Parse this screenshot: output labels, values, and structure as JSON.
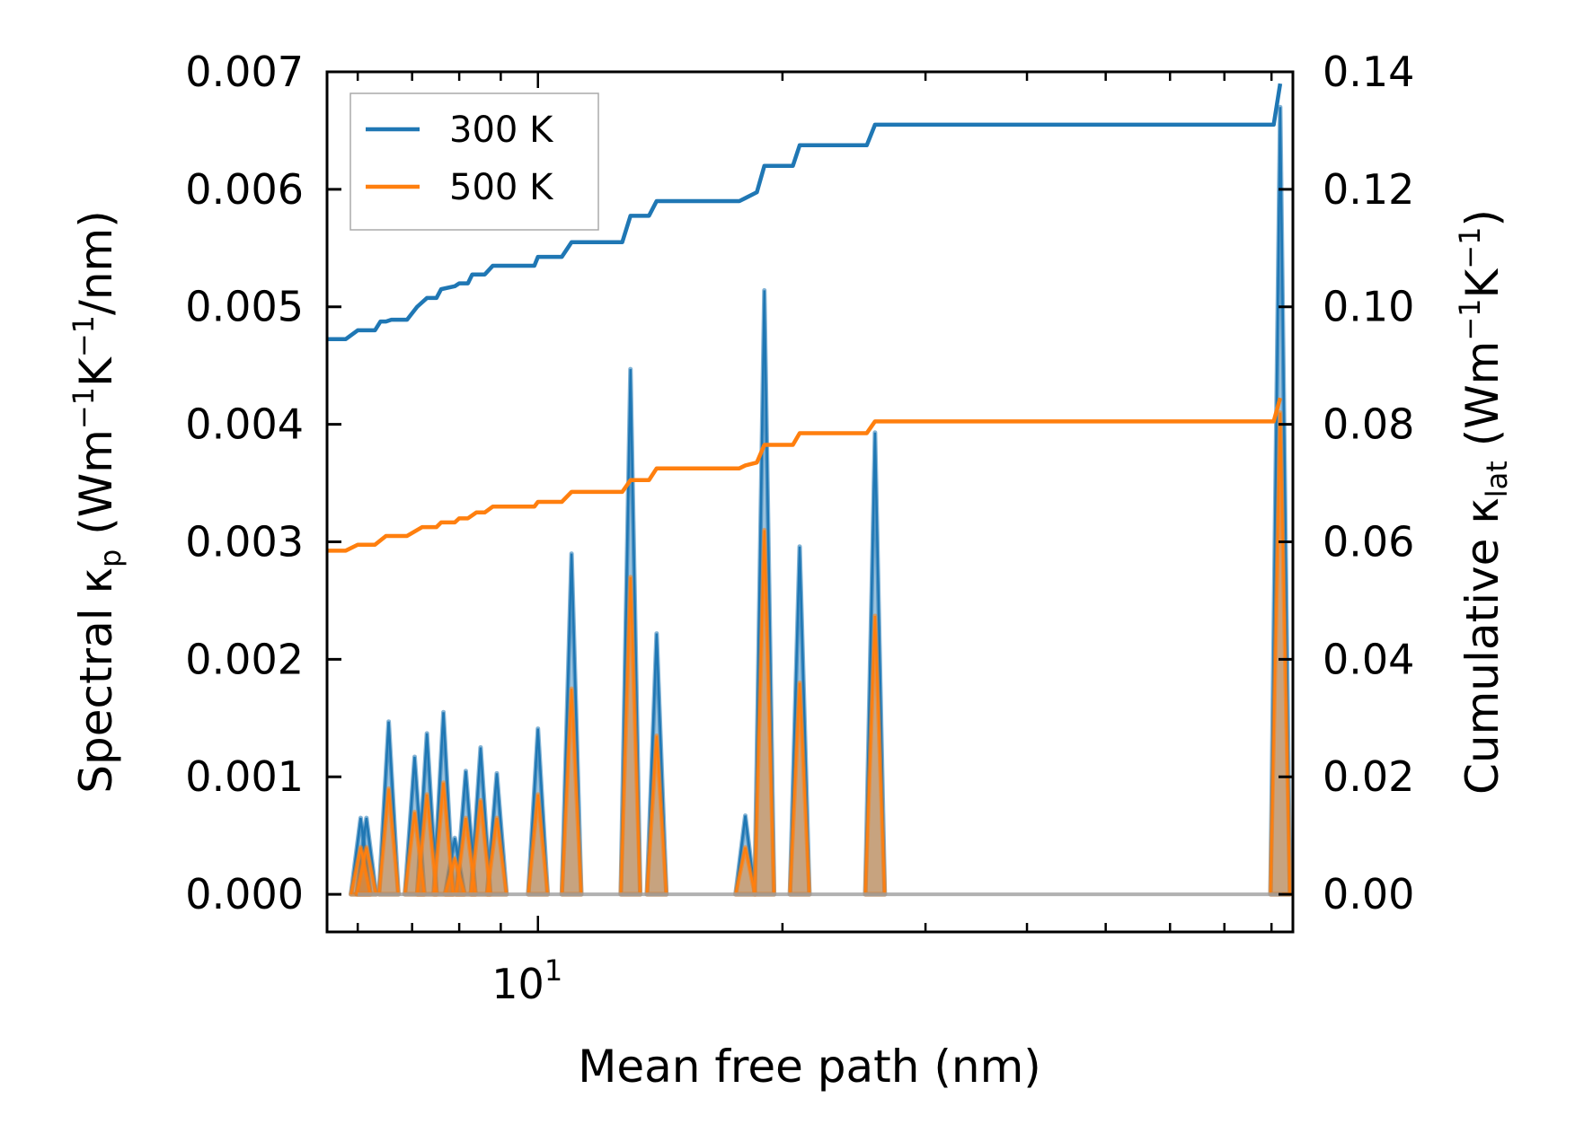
{
  "chart_data": {
    "type": "line",
    "xlabel": "Mean free path (nm)",
    "xscale": "log",
    "xlim": [
      5.5,
      85
    ],
    "x_tick_labels": [
      {
        "value": 10,
        "base": "10",
        "exp": "1"
      }
    ],
    "y_left": {
      "label_main": "Spectral κ",
      "label_sub": "p",
      "label_units": " (Wm",
      "label_exp1": "−1",
      "label_mid": "K",
      "label_exp2": "−1",
      "label_end": "/nm)",
      "ylim": [
        -0.00032,
        0.007
      ],
      "ticks": [
        0.0,
        0.001,
        0.002,
        0.003,
        0.004,
        0.005,
        0.006,
        0.007
      ],
      "tick_labels": [
        "0.000",
        "0.001",
        "0.002",
        "0.003",
        "0.004",
        "0.005",
        "0.006",
        "0.007"
      ]
    },
    "y_right": {
      "label_main": "Cumulative κ",
      "label_sub": "lat",
      "label_units": " (Wm",
      "label_exp1": "−1",
      "label_mid": "K",
      "label_exp2": "−1",
      "label_end": ")",
      "ticks": [
        0.0,
        0.02,
        0.04,
        0.06,
        0.08,
        0.1,
        0.12,
        0.14
      ],
      "tick_labels": [
        "0.00",
        "0.02",
        "0.04",
        "0.06",
        "0.08",
        "0.10",
        "0.12",
        "0.14"
      ]
    },
    "legend": {
      "placement": "top-left",
      "entries": [
        "300 K",
        "500 K"
      ]
    },
    "series": [
      {
        "name": "300 K",
        "color": "#1f77b4",
        "spectral_peaks": [
          [
            6.05,
            0.00065
          ],
          [
            6.15,
            0.00065
          ],
          [
            6.55,
            0.00147
          ],
          [
            7.05,
            0.00117
          ],
          [
            7.3,
            0.00137
          ],
          [
            7.65,
            0.00155
          ],
          [
            7.9,
            0.00048
          ],
          [
            8.15,
            0.00105
          ],
          [
            8.5,
            0.00125
          ],
          [
            8.9,
            0.00103
          ],
          [
            10.0,
            0.00141
          ],
          [
            11.0,
            0.0029
          ],
          [
            13.0,
            0.00447
          ],
          [
            14.0,
            0.00222
          ],
          [
            18.0,
            0.00067
          ],
          [
            19.0,
            0.00514
          ],
          [
            21.0,
            0.00296
          ],
          [
            26.0,
            0.00393
          ],
          [
            82.0,
            0.0067
          ]
        ],
        "cumulative": [
          [
            5.5,
            0.0945
          ],
          [
            5.8,
            0.0945
          ],
          [
            6.0,
            0.096
          ],
          [
            6.3,
            0.096
          ],
          [
            6.4,
            0.0975
          ],
          [
            6.5,
            0.0975
          ],
          [
            6.6,
            0.0978
          ],
          [
            6.9,
            0.0978
          ],
          [
            7.1,
            0.1
          ],
          [
            7.3,
            0.1015
          ],
          [
            7.5,
            0.1015
          ],
          [
            7.6,
            0.103
          ],
          [
            7.9,
            0.1035
          ],
          [
            8.0,
            0.104
          ],
          [
            8.2,
            0.104
          ],
          [
            8.3,
            0.1055
          ],
          [
            8.6,
            0.1055
          ],
          [
            8.8,
            0.107
          ],
          [
            9.9,
            0.107
          ],
          [
            10.0,
            0.1085
          ],
          [
            10.7,
            0.1085
          ],
          [
            11.0,
            0.111
          ],
          [
            12.7,
            0.111
          ],
          [
            13.0,
            0.1155
          ],
          [
            13.7,
            0.1155
          ],
          [
            14.0,
            0.118
          ],
          [
            17.7,
            0.118
          ],
          [
            18.0,
            0.1185
          ],
          [
            18.6,
            0.1195
          ],
          [
            19.0,
            0.124
          ],
          [
            20.6,
            0.124
          ],
          [
            21.0,
            0.1275
          ],
          [
            25.4,
            0.1275
          ],
          [
            26.0,
            0.131
          ],
          [
            80.5,
            0.131
          ],
          [
            82.0,
            0.138
          ]
        ]
      },
      {
        "name": "500 K",
        "color": "#ff7f0e",
        "spectral_peaks": [
          [
            6.05,
            0.0004
          ],
          [
            6.15,
            0.0004
          ],
          [
            6.55,
            0.0009
          ],
          [
            7.05,
            0.0007
          ],
          [
            7.3,
            0.00085
          ],
          [
            7.65,
            0.00095
          ],
          [
            7.9,
            0.0003
          ],
          [
            8.15,
            0.00065
          ],
          [
            8.5,
            0.0008
          ],
          [
            8.9,
            0.00065
          ],
          [
            10.0,
            0.00085
          ],
          [
            11.0,
            0.00175
          ],
          [
            13.0,
            0.0027
          ],
          [
            14.0,
            0.00135
          ],
          [
            18.0,
            0.0004
          ],
          [
            19.0,
            0.0031
          ],
          [
            21.0,
            0.0018
          ],
          [
            26.0,
            0.00237
          ],
          [
            82.0,
            0.0041
          ]
        ],
        "cumulative": [
          [
            5.5,
            0.0585
          ],
          [
            5.8,
            0.0585
          ],
          [
            6.0,
            0.0595
          ],
          [
            6.3,
            0.0595
          ],
          [
            6.5,
            0.061
          ],
          [
            6.9,
            0.061
          ],
          [
            7.2,
            0.0625
          ],
          [
            7.5,
            0.0625
          ],
          [
            7.6,
            0.0633
          ],
          [
            7.9,
            0.0633
          ],
          [
            8.0,
            0.064
          ],
          [
            8.2,
            0.064
          ],
          [
            8.4,
            0.065
          ],
          [
            8.6,
            0.065
          ],
          [
            8.8,
            0.066
          ],
          [
            9.9,
            0.066
          ],
          [
            10.0,
            0.0668
          ],
          [
            10.7,
            0.0668
          ],
          [
            11.0,
            0.0685
          ],
          [
            12.7,
            0.0685
          ],
          [
            13.0,
            0.0705
          ],
          [
            13.7,
            0.0705
          ],
          [
            14.0,
            0.0725
          ],
          [
            17.7,
            0.0725
          ],
          [
            18.0,
            0.073
          ],
          [
            18.6,
            0.0735
          ],
          [
            19.0,
            0.0765
          ],
          [
            20.6,
            0.0765
          ],
          [
            21.0,
            0.0785
          ],
          [
            25.4,
            0.0785
          ],
          [
            26.0,
            0.0805
          ],
          [
            80.5,
            0.0805
          ],
          [
            82.0,
            0.0845
          ]
        ]
      }
    ]
  }
}
